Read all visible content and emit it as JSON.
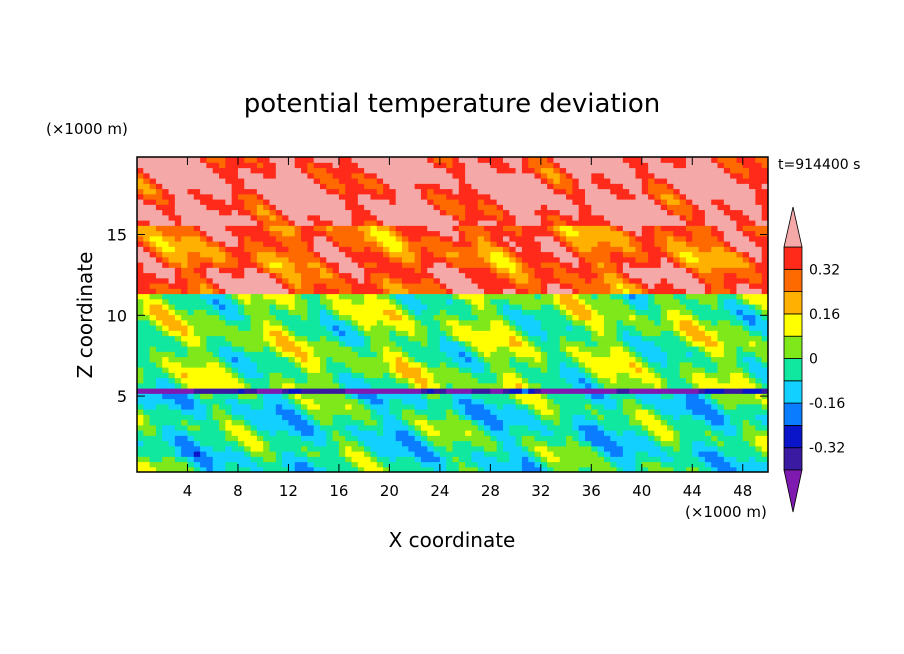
{
  "chart_data": {
    "type": "heatmap",
    "title": "potential temperature deviation",
    "xlabel": "X coordinate",
    "ylabel": "Z coordinate",
    "x_unit": "(×1000 m)",
    "y_unit": "(×1000 m)",
    "time_label": "t=914400 s",
    "xlim": [
      0,
      50
    ],
    "ylim": [
      0.3,
      19.8
    ],
    "x_ticks": [
      4,
      8,
      12,
      16,
      20,
      24,
      28,
      32,
      36,
      40,
      44,
      48
    ],
    "y_ticks": [
      5,
      10,
      15
    ],
    "colorbar": {
      "levels": [
        -0.4,
        -0.32,
        -0.24,
        -0.16,
        -0.08,
        0,
        0.08,
        0.16,
        0.24,
        0.32,
        0.4
      ],
      "labels": [
        "0.32",
        "0.16",
        "0",
        "-0.16",
        "-0.32"
      ],
      "label_values": [
        0.32,
        0.16,
        0,
        -0.16,
        -0.32
      ],
      "colors": [
        "#7f1ab0",
        "#3a1aa0",
        "#0a14c8",
        "#0a7cff",
        "#12d0ff",
        "#10e8a0",
        "#7ee81a",
        "#ffff00",
        "#ffb000",
        "#ff6a00",
        "#ff2a1a",
        "#f4a8a8"
      ],
      "extend": "both"
    },
    "layers": [
      {
        "zmin": 15.5,
        "zmax": 19.8,
        "dominant": 0.42
      },
      {
        "zmin": 13.0,
        "zmax": 15.5,
        "dominant": 0.3
      },
      {
        "zmin": 11.5,
        "zmax": 13.0,
        "dominant": 0.34
      },
      {
        "zmin": 5.5,
        "zmax": 11.5,
        "dominant": 0.02
      },
      {
        "zmin": 5.2,
        "zmax": 5.5,
        "dominant": -0.42
      },
      {
        "zmin": 0.3,
        "zmax": 5.2,
        "dominant": -0.05
      }
    ]
  }
}
